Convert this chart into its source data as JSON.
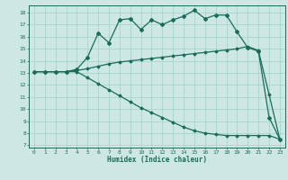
{
  "xlabel": "Humidex (Indice chaleur)",
  "bg_color": "#cde8e4",
  "grid_color": "#a8d4cc",
  "line_color": "#1a6b5a",
  "xlim": [
    -0.5,
    23.5
  ],
  "ylim": [
    6.8,
    18.6
  ],
  "xticks": [
    0,
    1,
    2,
    3,
    4,
    5,
    6,
    7,
    8,
    9,
    10,
    11,
    12,
    13,
    14,
    15,
    16,
    17,
    18,
    19,
    20,
    21,
    22,
    23
  ],
  "yticks": [
    7,
    8,
    9,
    10,
    11,
    12,
    13,
    14,
    15,
    16,
    17,
    18
  ],
  "series1_x": [
    0,
    1,
    2,
    3,
    4,
    5,
    6,
    7,
    8,
    9,
    10,
    11,
    12,
    13,
    14,
    15,
    16,
    17,
    18,
    19,
    20,
    21,
    22,
    23
  ],
  "series1_y": [
    13.1,
    13.1,
    13.1,
    13.1,
    13.3,
    14.3,
    16.3,
    15.5,
    17.4,
    17.5,
    16.6,
    17.4,
    17.0,
    17.4,
    17.7,
    18.2,
    17.5,
    17.8,
    17.8,
    16.4,
    15.1,
    14.8,
    9.3,
    7.5
  ],
  "series2_x": [
    0,
    1,
    2,
    3,
    4,
    5,
    6,
    7,
    8,
    9,
    10,
    11,
    12,
    13,
    14,
    15,
    16,
    17,
    18,
    19,
    20,
    21,
    22,
    23
  ],
  "series2_y": [
    13.1,
    13.1,
    13.1,
    13.1,
    13.2,
    13.35,
    13.55,
    13.75,
    13.9,
    14.0,
    14.1,
    14.2,
    14.3,
    14.4,
    14.5,
    14.6,
    14.7,
    14.8,
    14.9,
    15.0,
    15.2,
    14.85,
    11.2,
    7.5
  ],
  "series3_x": [
    0,
    1,
    2,
    3,
    4,
    5,
    6,
    7,
    8,
    9,
    10,
    11,
    12,
    13,
    14,
    15,
    16,
    17,
    18,
    19,
    20,
    21,
    22,
    23
  ],
  "series3_y": [
    13.1,
    13.1,
    13.1,
    13.1,
    13.1,
    12.6,
    12.1,
    11.6,
    11.1,
    10.6,
    10.1,
    9.7,
    9.3,
    8.9,
    8.5,
    8.2,
    8.0,
    7.9,
    7.8,
    7.8,
    7.8,
    7.8,
    7.8,
    7.5
  ]
}
